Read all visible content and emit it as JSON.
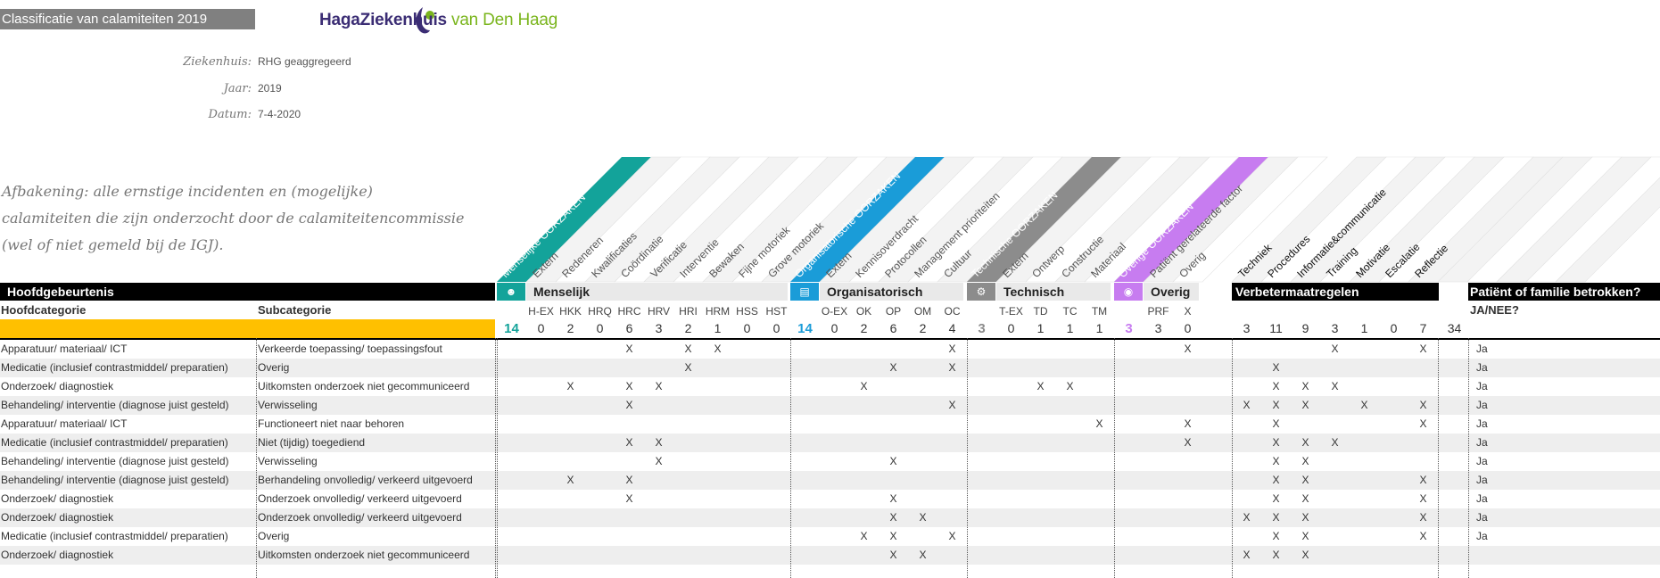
{
  "title": "Classificatie van calamiteiten 2019",
  "logo": {
    "name": "HagaZiekenhuis",
    "suffix": "van Den Haag"
  },
  "meta": [
    {
      "label": "Ziekenhuis:",
      "value": "RHG geaggregeerd"
    },
    {
      "label": "Jaar:",
      "value": "2019"
    },
    {
      "label": "Datum:",
      "value": "7-4-2020"
    }
  ],
  "scope": [
    "Afbakening: alle ernstige incidenten en (mogelijke)",
    "calamiteiten die zijn onderzocht door de calamiteitencommissie",
    "(wel of niet gemeld bij de IGJ)."
  ],
  "headers": {
    "hoofdgebeurtenis": "Hoofdgebeurtenis",
    "hoofdcategorie": "Hoofdcategorie",
    "subcategorie": "Subcategorie",
    "verbeter": "Verbetermaatregelen",
    "patient": "Patiënt of familie betrokken?",
    "janee": "JA/NEE?"
  },
  "groups": [
    {
      "name": "Menselijk",
      "color": "#13a39a",
      "icon": "person-icon",
      "icon_char": "☻",
      "diag_label": "Menselijke OORZAKEN",
      "total": "14",
      "sub_labels": [
        "Extern",
        "Redeneren",
        "Kwalificaties",
        "Coördinatie",
        "Verificatie",
        "Interventie",
        "Bewaken",
        "Fijne motoriek",
        "Grove motoriek"
      ],
      "codes": [
        "H-EX",
        "HKK",
        "HRQ",
        "HRC",
        "HRV",
        "HRI",
        "HRM",
        "HSS",
        "HST"
      ],
      "counts": [
        "0",
        "2",
        "0",
        "6",
        "3",
        "2",
        "1",
        "0",
        "0"
      ]
    },
    {
      "name": "Organisatorisch",
      "color": "#1a9cd8",
      "icon": "building-icon",
      "icon_char": "▤",
      "diag_label": "Organisatorische OORZAKEN",
      "total": "14",
      "sub_labels": [
        "Extern",
        "Kennisoverdracht",
        "Protocollen",
        "Management prioriteiten",
        "Cultuur"
      ],
      "codes": [
        "O-EX",
        "OK",
        "OP",
        "OM",
        "OC"
      ],
      "counts": [
        "0",
        "2",
        "6",
        "2",
        "4"
      ]
    },
    {
      "name": "Technisch",
      "color": "#8c8c8c",
      "icon": "gear-icon",
      "icon_char": "⚙",
      "diag_label": "Technische OORZAKEN",
      "total": "3",
      "sub_labels": [
        "Extern",
        "Ontwerp",
        "Constructie",
        "Materiaal"
      ],
      "codes": [
        "T-EX",
        "TD",
        "TC",
        "TM"
      ],
      "counts": [
        "0",
        "1",
        "1",
        "1"
      ]
    },
    {
      "name": "Overig",
      "color": "#c77cf0",
      "icon": "eye-icon",
      "icon_char": "◉",
      "diag_label": "Overige OORZAKEN",
      "total": "3",
      "sub_labels": [
        "Patiënt gerelateerde factor",
        "Overig"
      ],
      "codes": [
        "PRF",
        "X"
      ],
      "counts": [
        "3",
        "0"
      ]
    }
  ],
  "verbeter": {
    "labels": [
      "Techniek",
      "Procedures",
      "Informatie&communicatie",
      "Training",
      "Motivatie",
      "Escalatie",
      "Reflectie"
    ],
    "counts": [
      "3",
      "11",
      "9",
      "3",
      "1",
      "0",
      "7"
    ],
    "total": "34"
  },
  "rows": [
    {
      "main": "Apparatuur/ materiaal/ ICT",
      "sub": "Verkeerde toepassing/ toepassingsfout",
      "causes": [
        3,
        5,
        6,
        13
      ],
      "causes2": [
        19
      ],
      "verb": [
        3,
        6
      ],
      "ja": "Ja"
    },
    {
      "main": "Medicatie (inclusief contrastmiddel/ preparatien)",
      "sub": "Overig",
      "causes": [
        5,
        11,
        13
      ],
      "causes2": [],
      "verb": [
        1
      ],
      "ja": "Ja"
    },
    {
      "main": "Onderzoek/ diagnostiek",
      "sub": "Uitkomsten onderzoek niet gecommuniceerd",
      "causes": [
        1,
        3,
        4,
        10
      ],
      "causes2": [
        15,
        16
      ],
      "verb": [
        1,
        2,
        3
      ],
      "ja": "Ja"
    },
    {
      "main": "Behandeling/ interventie (diagnose juist gesteld)",
      "sub": "Verwisseling",
      "causes": [
        3,
        13
      ],
      "causes2": [],
      "verb": [
        0,
        1,
        2,
        4,
        6
      ],
      "ja": "Ja"
    },
    {
      "main": "Apparatuur/ materiaal/ ICT",
      "sub": "Functioneert niet naar behoren",
      "causes": [],
      "causes2": [
        17,
        19
      ],
      "verb": [
        1,
        6
      ],
      "ja": "Ja"
    },
    {
      "main": "Medicatie (inclusief contrastmiddel/ preparatien)",
      "sub": "Niet (tijdig) toegediend",
      "causes": [
        3,
        4
      ],
      "causes2": [
        19
      ],
      "verb": [
        1,
        2,
        3
      ],
      "ja": "Ja"
    },
    {
      "main": "Behandeling/ interventie (diagnose juist gesteld)",
      "sub": "Verwisseling",
      "causes": [
        4,
        11
      ],
      "causes2": [],
      "verb": [
        1,
        2
      ],
      "ja": "Ja"
    },
    {
      "main": "Behandeling/ interventie (diagnose juist gesteld)",
      "sub": "Berhandeling onvolledig/ verkeerd uitgevoerd",
      "causes": [
        1,
        3
      ],
      "causes2": [],
      "verb": [
        1,
        2,
        6
      ],
      "ja": "Ja"
    },
    {
      "main": "Onderzoek/ diagnostiek",
      "sub": "Onderzoek onvolledig/ verkeerd uitgevoerd",
      "causes": [
        3,
        11
      ],
      "causes2": [],
      "verb": [
        1,
        2,
        6
      ],
      "ja": "Ja"
    },
    {
      "main": "Onderzoek/ diagnostiek",
      "sub": "Onderzoek onvolledig/ verkeerd uitgevoerd",
      "causes": [
        11,
        12
      ],
      "causes2": [],
      "verb": [
        0,
        1,
        2,
        6
      ],
      "ja": "Ja"
    },
    {
      "main": "Medicatie (inclusief contrastmiddel/ preparatien)",
      "sub": "Overig",
      "causes": [
        10,
        11,
        13
      ],
      "causes2": [],
      "verb": [
        1,
        2,
        6
      ],
      "ja": "Ja"
    },
    {
      "main": "Onderzoek/ diagnostiek",
      "sub": "Uitkomsten onderzoek niet gecommuniceerd",
      "causes": [
        11,
        12
      ],
      "causes2": [],
      "verb": [
        0,
        1,
        2
      ],
      "ja": ""
    }
  ],
  "mark": "X"
}
